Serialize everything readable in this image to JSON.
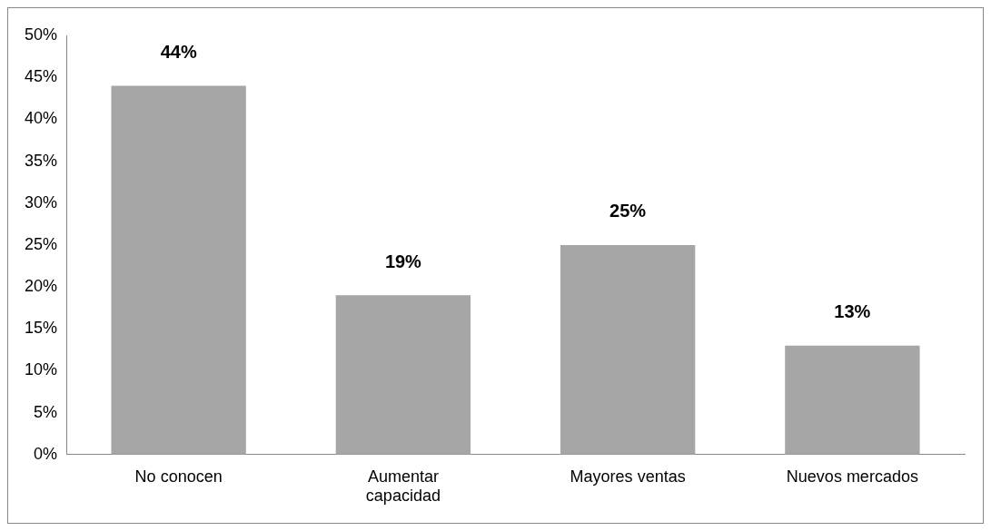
{
  "chart_data": {
    "type": "bar",
    "categories": [
      "No conocen",
      "Aumentar capacidad",
      "Mayores ventas",
      "Nuevos mercados"
    ],
    "values": [
      44,
      19,
      25,
      13
    ],
    "color": "#a6a6a6",
    "value_labels": [
      "44%",
      "19%",
      "25%",
      "13%"
    ],
    "ylim": [
      0,
      50
    ],
    "yticks": [
      {
        "value": 0,
        "label": "0%"
      },
      {
        "value": 5,
        "label": "5%"
      },
      {
        "value": 10,
        "label": "10%"
      },
      {
        "value": 15,
        "label": "15%"
      },
      {
        "value": 20,
        "label": "20%"
      },
      {
        "value": 25,
        "label": "25%"
      },
      {
        "value": 30,
        "label": "30%"
      },
      {
        "value": 35,
        "label": "35%"
      },
      {
        "value": 40,
        "label": "40%"
      },
      {
        "value": 45,
        "label": "45%"
      },
      {
        "value": 50,
        "label": "50%"
      }
    ],
    "grid": false,
    "legend": false
  }
}
